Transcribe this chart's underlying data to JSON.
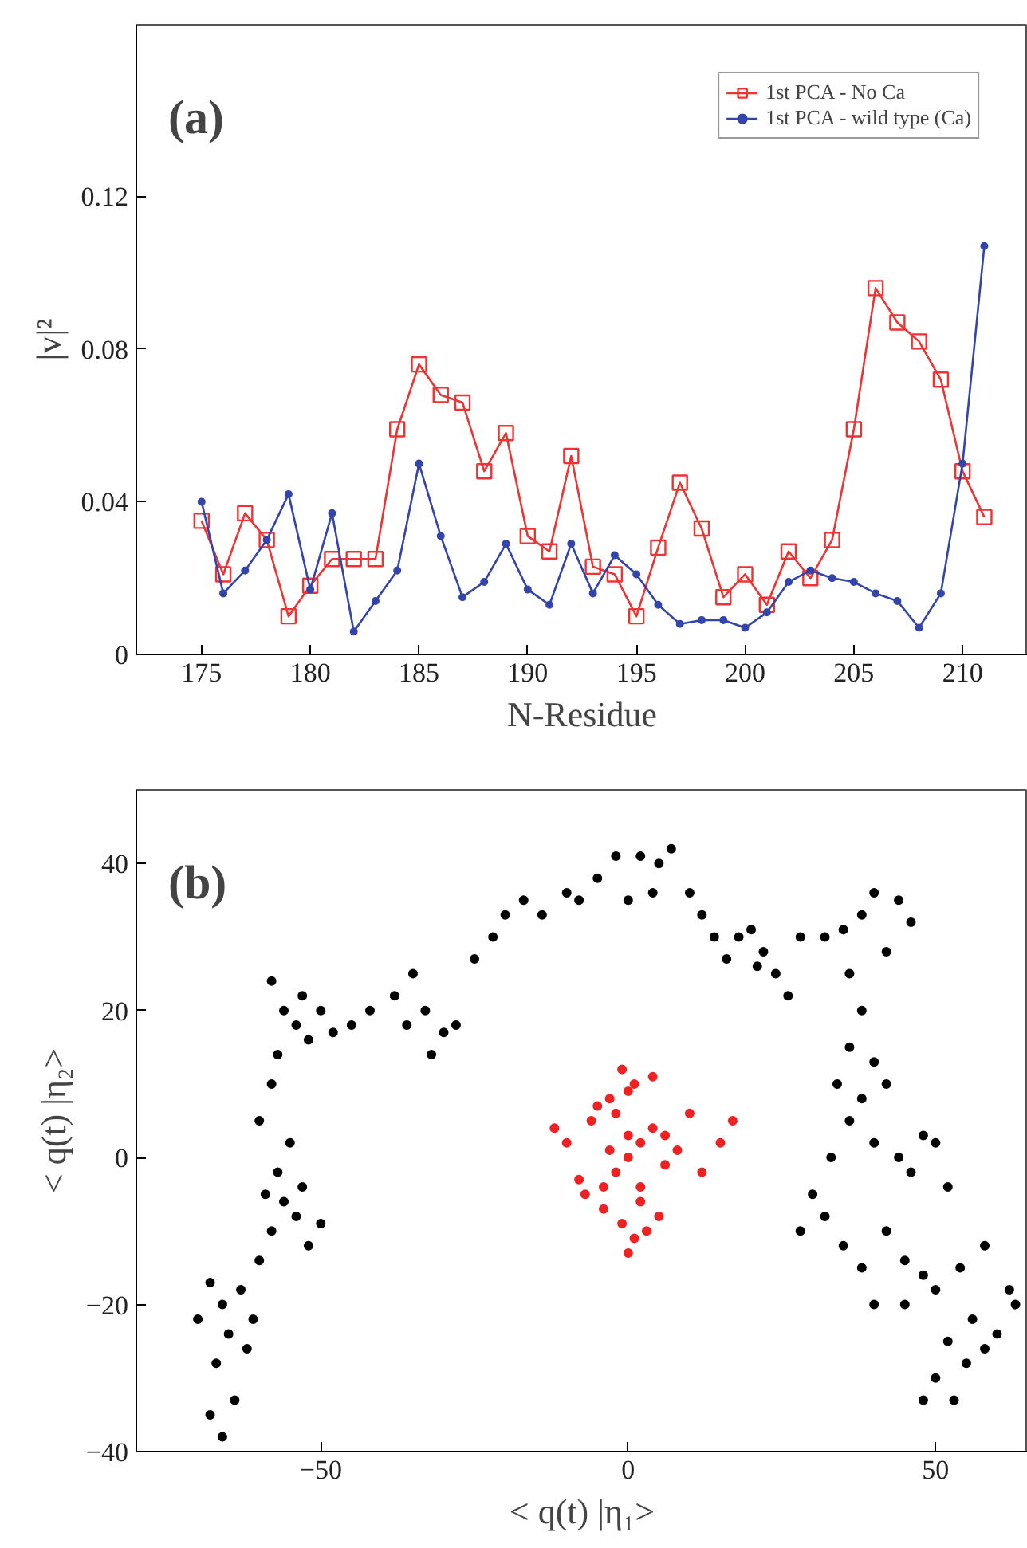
{
  "chart_data": [
    {
      "type": "line",
      "xlabel": "N-Residue",
      "ylabel": "|v|²",
      "annotations": [
        "(a)"
      ],
      "x": [
        175,
        176,
        177,
        178,
        179,
        180,
        181,
        182,
        183,
        184,
        185,
        186,
        187,
        188,
        189,
        190,
        191,
        192,
        193,
        194,
        195,
        196,
        197,
        198,
        199,
        200,
        201,
        202,
        203,
        204,
        205,
        206,
        207,
        208,
        209,
        210,
        211
      ],
      "series": [
        {
          "name": "1st PCA - No Ca",
          "color": "#ee3333",
          "marker": "square",
          "values": [
            0.035,
            0.021,
            0.037,
            0.03,
            0.01,
            0.018,
            0.025,
            0.025,
            0.025,
            0.059,
            0.076,
            0.068,
            0.066,
            0.048,
            0.058,
            0.031,
            0.027,
            0.052,
            0.023,
            0.021,
            0.01,
            0.028,
            0.045,
            0.033,
            0.015,
            0.021,
            0.013,
            0.027,
            0.02,
            0.03,
            0.059,
            0.096,
            0.087,
            0.082,
            0.072,
            0.048,
            0.036
          ]
        },
        {
          "name": "1st PCA - wild type (Ca)",
          "color": "#3344aa",
          "marker": "circle",
          "values": [
            0.04,
            0.016,
            0.022,
            0.03,
            0.042,
            0.017,
            0.037,
            0.006,
            0.014,
            0.022,
            0.05,
            0.031,
            0.015,
            0.019,
            0.029,
            0.017,
            0.013,
            0.029,
            0.016,
            0.026,
            0.021,
            0.013,
            0.008,
            0.009,
            0.009,
            0.007,
            0.011,
            0.019,
            0.022,
            0.02,
            0.019,
            0.016,
            0.014,
            0.007,
            0.016,
            0.05,
            0.107
          ]
        }
      ],
      "xlim": [
        172,
        213
      ],
      "ylim": [
        0,
        0.165
      ],
      "xticks": [
        175,
        180,
        185,
        190,
        195,
        200,
        205,
        210
      ],
      "yticks": [
        {
          "value": 0,
          "label": "0"
        },
        0.04,
        0.08,
        0.12
      ],
      "grid": false,
      "legend": "top right",
      "line_style": "solid"
    },
    {
      "type": "scatter",
      "xlabel": "< q(t) |η₁>",
      "ylabel": "< q(t) |η₂>",
      "annotations": [
        "(b)"
      ],
      "series": [
        {
          "color": "#000000",
          "marker": "circle",
          "x": [
            -68,
            -66,
            -64,
            -67,
            -70,
            -66,
            -63,
            -65,
            -61,
            -68,
            -62,
            -60,
            -58,
            -56,
            -54,
            -52,
            -57,
            -55,
            -50,
            -53,
            -59,
            -60,
            -58,
            -57,
            -56,
            -58,
            -53,
            -50,
            -52,
            -54,
            -48,
            -45,
            -42,
            -38,
            -35,
            -33,
            -30,
            -32,
            -28,
            -36,
            -25,
            -22,
            -20,
            -17,
            -14,
            -10,
            -8,
            -5,
            -2,
            2,
            5,
            7,
            4,
            0,
            10,
            12,
            14,
            16,
            18,
            20,
            22,
            24,
            26,
            21,
            28,
            32,
            35,
            38,
            40,
            44,
            46,
            42,
            36,
            38,
            36,
            40,
            42,
            38,
            34,
            36,
            40,
            44,
            46,
            48,
            50,
            52,
            33,
            30,
            28,
            32,
            35,
            38,
            42,
            45,
            48,
            50,
            54,
            58,
            62,
            56,
            52,
            55,
            58,
            50,
            48,
            53,
            60,
            63,
            45,
            40
          ],
          "values": [
            -35,
            -38,
            -33,
            -28,
            -22,
            -20,
            -18,
            -24,
            -22,
            -17,
            -26,
            -14,
            -10,
            -6,
            -8,
            -12,
            -2,
            2,
            -9,
            -4,
            -5,
            5,
            10,
            14,
            20,
            24,
            22,
            20,
            16,
            18,
            17,
            18,
            20,
            22,
            25,
            20,
            17,
            14,
            18,
            18,
            27,
            30,
            33,
            35,
            33,
            36,
            35,
            38,
            41,
            41,
            40,
            42,
            36,
            35,
            36,
            33,
            30,
            27,
            30,
            31,
            28,
            25,
            22,
            26,
            30,
            30,
            31,
            33,
            36,
            35,
            32,
            28,
            25,
            20,
            15,
            13,
            10,
            8,
            10,
            5,
            2,
            0,
            -2,
            3,
            2,
            -4,
            0,
            -5,
            -10,
            -8,
            -12,
            -15,
            -10,
            -14,
            -16,
            -18,
            -15,
            -12,
            -18,
            -22,
            -25,
            -28,
            -26,
            -30,
            -33,
            -33,
            -24,
            -20,
            -20,
            -20
          ]
        },
        {
          "color": "#ee2222",
          "marker": "circle",
          "x": [
            0,
            2,
            -2,
            4,
            -4,
            6,
            -6,
            8,
            -8,
            10,
            -10,
            12,
            -12,
            0,
            1,
            -1,
            3,
            -3,
            5,
            -5,
            2,
            -2,
            0,
            1,
            -1,
            4,
            -4,
            0,
            15,
            17,
            2,
            -3,
            6,
            -7
          ],
          "values": [
            0,
            2,
            -2,
            4,
            -4,
            3,
            5,
            1,
            -3,
            6,
            2,
            -2,
            4,
            -13,
            10,
            12,
            -10,
            8,
            -8,
            7,
            -6,
            6,
            9,
            -11,
            -9,
            11,
            -7,
            3,
            2,
            5,
            -4,
            1,
            -1,
            -5
          ]
        }
      ],
      "xlim": [
        -80,
        65
      ],
      "ylim": [
        -40,
        50
      ],
      "xticks": [
        -50,
        0,
        50
      ],
      "yticks": [
        -40,
        -20,
        0,
        20,
        40
      ],
      "grid": false,
      "legend": false
    }
  ]
}
